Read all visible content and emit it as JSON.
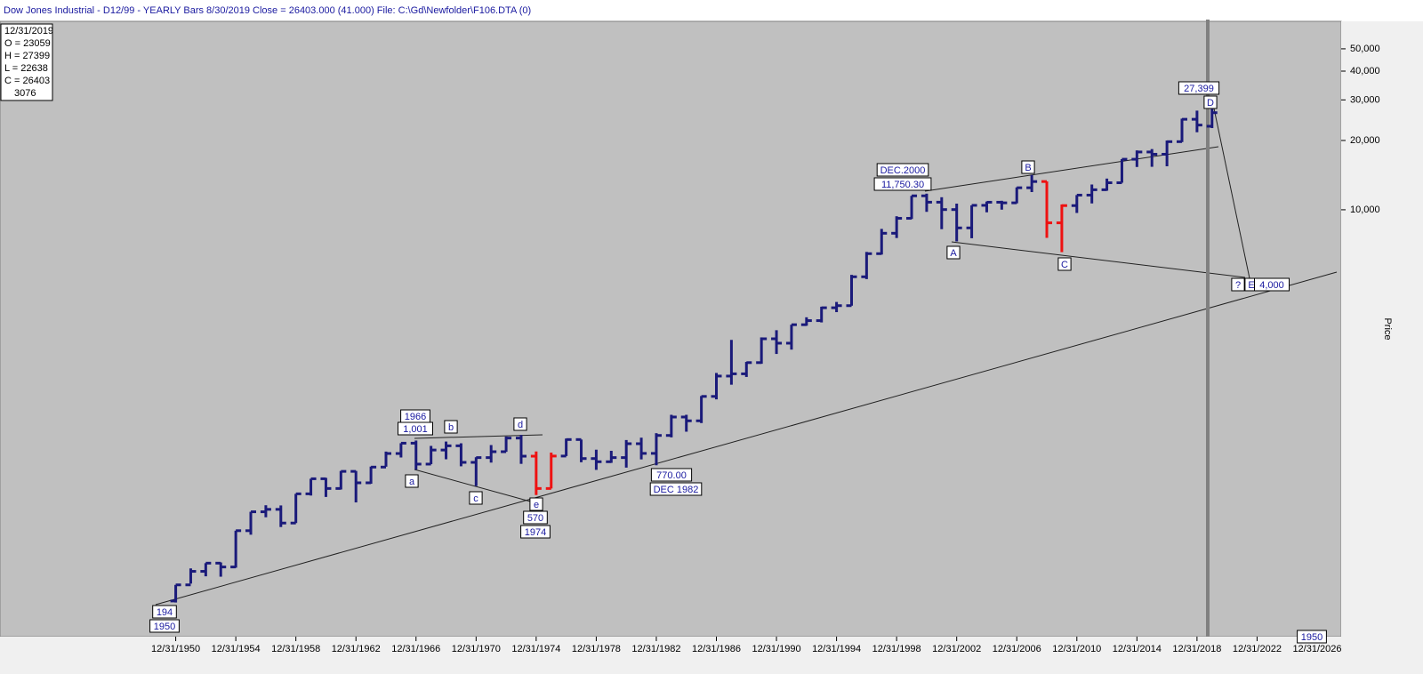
{
  "chart_data": {
    "type": "ohlc",
    "title": "Dow Jones Industrial - D12/99  - YEARLY Bars  8/30/2019 Close = 26403.000 (41.000)    File: C:\\Gd\\Newfolder\\F106.DTA (0)",
    "y_axis_label": "Price",
    "log_scale": true,
    "x": [
      1950,
      1951,
      1952,
      1953,
      1954,
      1955,
      1956,
      1957,
      1958,
      1959,
      1960,
      1961,
      1962,
      1963,
      1964,
      1965,
      1966,
      1967,
      1968,
      1969,
      1970,
      1971,
      1972,
      1973,
      1974,
      1975,
      1976,
      1977,
      1978,
      1979,
      1980,
      1981,
      1982,
      1983,
      1984,
      1985,
      1986,
      1987,
      1988,
      1989,
      1990,
      1991,
      1992,
      1993,
      1994,
      1995,
      1996,
      1997,
      1998,
      1999,
      2000,
      2001,
      2002,
      2003,
      2004,
      2005,
      2006,
      2007,
      2008,
      2009,
      2010,
      2011,
      2012,
      2013,
      2014,
      2015,
      2016,
      2017,
      2018,
      2019
    ],
    "open": [
      200,
      235,
      269,
      292,
      281,
      404,
      488,
      500,
      436,
      584,
      679,
      616,
      731,
      652,
      763,
      874,
      969,
      786,
      905,
      944,
      800,
      839,
      890,
      1020,
      851,
      616,
      852,
      1005,
      831,
      805,
      839,
      964,
      875,
      1047,
      1259,
      1212,
      1547,
      1896,
      1939,
      2169,
      2753,
      2634,
      3169,
      3301,
      3754,
      3834,
      5117,
      6448,
      7908,
      9181,
      11497,
      10787,
      10021,
      8342,
      10454,
      10783,
      10718,
      12463,
      13264,
      8776,
      10428,
      11578,
      12218,
      13104,
      16577,
      17823,
      17425,
      19763,
      24719,
      23059
    ],
    "high": [
      235,
      277,
      292,
      294,
      404,
      488,
      521,
      520,
      584,
      679,
      685,
      734,
      734,
      767,
      891,
      969,
      995,
      943,
      985,
      968,
      842,
      951,
      1036,
      1052,
      892,
      882,
      1015,
      1005,
      908,
      898,
      1000,
      1024,
      1071,
      1287,
      1287,
      1553,
      1956,
      2722,
      2184,
      2791,
      2999,
      3169,
      3413,
      3794,
      3978,
      5216,
      6560,
      8259,
      9374,
      11497,
      11750,
      11337,
      10635,
      10454,
      10854,
      10940,
      12510,
      14164,
      13279,
      10548,
      11585,
      12876,
      13661,
      16588,
      18103,
      18351,
      19987,
      24876,
      26951,
      27399
    ],
    "low": [
      197,
      238,
      256,
      255,
      279,
      388,
      462,
      419,
      436,
      574,
      566,
      610,
      536,
      646,
      766,
      840,
      744,
      786,
      825,
      769,
      631,
      798,
      889,
      788,
      577,
      616,
      852,
      801,
      742,
      796,
      759,
      824,
      777,
      1027,
      1087,
      1185,
      1502,
      1739,
      1879,
      2144,
      2365,
      2470,
      3136,
      3242,
      3593,
      3832,
      5000,
      6391,
      7539,
      9120,
      9796,
      8236,
      7286,
      7524,
      9750,
      10012,
      10667,
      11939,
      7552,
      6547,
      9686,
      10655,
      12101,
      13104,
      15340,
      15370,
      15450,
      19677,
      21713,
      22638
    ],
    "close": [
      235,
      269,
      292,
      281,
      404,
      488,
      500,
      436,
      584,
      679,
      616,
      731,
      652,
      763,
      874,
      969,
      786,
      905,
      944,
      800,
      839,
      890,
      1020,
      851,
      616,
      852,
      1005,
      831,
      805,
      839,
      964,
      875,
      1047,
      1259,
      1212,
      1547,
      1896,
      1939,
      2169,
      2753,
      2634,
      3169,
      3301,
      3754,
      3834,
      5117,
      6448,
      7908,
      9181,
      11497,
      10787,
      10021,
      8342,
      10454,
      10783,
      10718,
      12463,
      13264,
      8776,
      10428,
      11578,
      12218,
      13104,
      16577,
      17823,
      17425,
      19763,
      24719,
      23327,
      26403
    ],
    "bar_colors": [
      "#1a1a7a",
      "#1a1a7a",
      "#1a1a7a",
      "#1a1a7a",
      "#1a1a7a",
      "#1a1a7a",
      "#1a1a7a",
      "#1a1a7a",
      "#1a1a7a",
      "#1a1a7a",
      "#1a1a7a",
      "#1a1a7a",
      "#1a1a7a",
      "#1a1a7a",
      "#1a1a7a",
      "#1a1a7a",
      "#1a1a7a",
      "#1a1a7a",
      "#1a1a7a",
      "#1a1a7a",
      "#1a1a7a",
      "#1a1a7a",
      "#1a1a7a",
      "#1a1a7a",
      "#ee1111",
      "#ee1111",
      "#1a1a7a",
      "#1a1a7a",
      "#1a1a7a",
      "#1a1a7a",
      "#1a1a7a",
      "#1a1a7a",
      "#1a1a7a",
      "#1a1a7a",
      "#1a1a7a",
      "#1a1a7a",
      "#1a1a7a",
      "#1a1a7a",
      "#1a1a7a",
      "#1a1a7a",
      "#1a1a7a",
      "#1a1a7a",
      "#1a1a7a",
      "#1a1a7a",
      "#1a1a7a",
      "#1a1a7a",
      "#1a1a7a",
      "#1a1a7a",
      "#1a1a7a",
      "#1a1a7a",
      "#1a1a7a",
      "#1a1a7a",
      "#1a1a7a",
      "#1a1a7a",
      "#1a1a7a",
      "#1a1a7a",
      "#1a1a7a",
      "#1a1a7a",
      "#ee1111",
      "#ee1111",
      "#1a1a7a",
      "#1a1a7a",
      "#1a1a7a",
      "#1a1a7a",
      "#1a1a7a",
      "#1a1a7a",
      "#1a1a7a",
      "#1a1a7a",
      "#1a1a7a",
      "#1a1a7a"
    ],
    "xlim": [
      1938.3,
      2027.6
    ],
    "xticks": [
      {
        "value": 1950,
        "label": "12/31/1950"
      },
      {
        "value": 1954,
        "label": "12/31/1954"
      },
      {
        "value": 1958,
        "label": "12/31/1958"
      },
      {
        "value": 1962,
        "label": "12/31/1962"
      },
      {
        "value": 1966,
        "label": "12/31/1966"
      },
      {
        "value": 1970,
        "label": "12/31/1970"
      },
      {
        "value": 1974,
        "label": "12/31/1974"
      },
      {
        "value": 1978,
        "label": "12/31/1978"
      },
      {
        "value": 1982,
        "label": "12/31/1982"
      },
      {
        "value": 1986,
        "label": "12/31/1986"
      },
      {
        "value": 1990,
        "label": "12/31/1990"
      },
      {
        "value": 1994,
        "label": "12/31/1994"
      },
      {
        "value": 1998,
        "label": "12/31/1998"
      },
      {
        "value": 2002,
        "label": "12/31/2002"
      },
      {
        "value": 2006,
        "label": "12/31/2006"
      },
      {
        "value": 2010,
        "label": "12/31/2010"
      },
      {
        "value": 2014,
        "label": "12/31/2014"
      },
      {
        "value": 2018,
        "label": "12/31/2018"
      },
      {
        "value": 2022,
        "label": "12/31/2022"
      },
      {
        "value": 2026,
        "label": "12/31/2026"
      }
    ],
    "ylim": [
      140,
      67000
    ],
    "yticks": [
      {
        "value": 10000,
        "label": "10,000"
      },
      {
        "value": 20000,
        "label": "20,000"
      },
      {
        "value": 30000,
        "label": "30,000"
      },
      {
        "value": 40000,
        "label": "40,000"
      },
      {
        "value": 50000,
        "label": "50,000"
      }
    ],
    "info_box": [
      "12/31/2019",
      "O = 23059",
      "H = 27399",
      "L = 22638",
      "C = 26403",
      "3076"
    ],
    "annotations": [
      "1966",
      "1,001",
      "b",
      "d",
      "a",
      "c",
      "e",
      "570",
      "1974",
      "770.00",
      "DEC 1982",
      "DEC.2000",
      "11,750.30",
      "B",
      "A",
      "C",
      "?",
      "E",
      "4,000",
      "27,399",
      "D",
      "194",
      "1950",
      "1950"
    ]
  }
}
